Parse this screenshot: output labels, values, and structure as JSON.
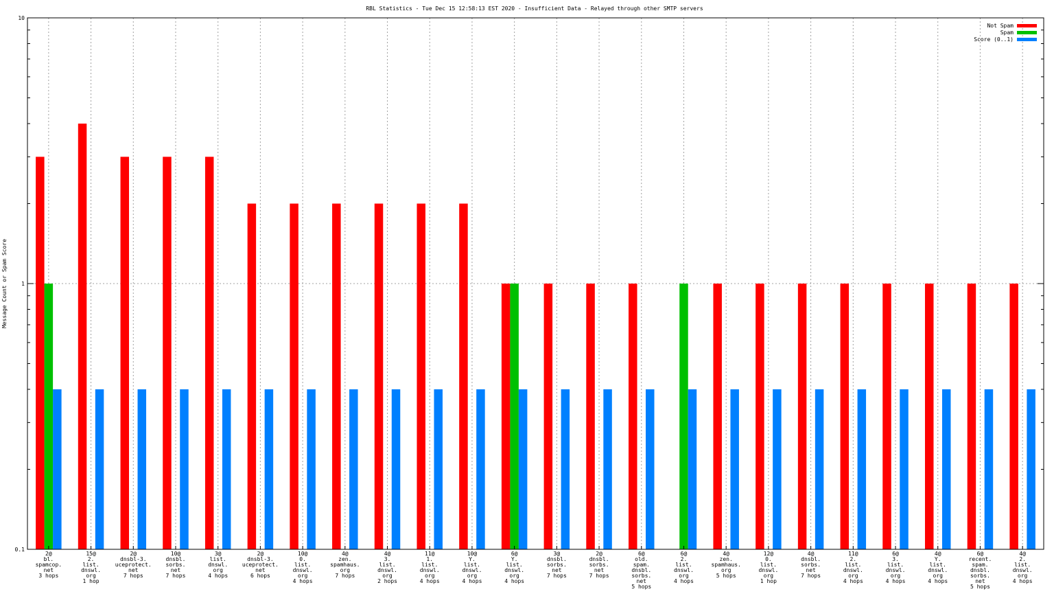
{
  "chart_data": {
    "type": "bar",
    "title": "RBL Statistics - Tue Dec 15 12:58:13 EST 2020 - Insufficient Data - Relayed through other SMTP servers",
    "xlabel": "",
    "ylabel": "Message Count or Spam Score",
    "yscale": "log",
    "ylim": [
      0.1,
      10
    ],
    "yticks": [
      "10",
      "1",
      "0.1"
    ],
    "grid": true,
    "legend_position": "top-right",
    "categories": [
      [
        "2@",
        "bl.",
        "spamcop.",
        "net",
        "3 hops"
      ],
      [
        "15@",
        "2.",
        "list.",
        "dnswl.",
        "org",
        "1 hop"
      ],
      [
        "2@",
        "dnsbl-3.",
        "uceprotect.",
        "net",
        "7 hops"
      ],
      [
        "10@",
        "dnsbl.",
        "sorbs.",
        "net",
        "7 hops"
      ],
      [
        "3@",
        "list.",
        "dnswl.",
        "org",
        "4 hops"
      ],
      [
        "2@",
        "dnsbl-3.",
        "uceprotect.",
        "net",
        "6 hops"
      ],
      [
        "10@",
        "0.",
        "list.",
        "dnswl.",
        "org",
        "4 hops"
      ],
      [
        "4@",
        "zen.",
        "spamhaus.",
        "org",
        "7 hops"
      ],
      [
        "4@",
        "3.",
        "list.",
        "dnswl.",
        "org",
        "2 hops"
      ],
      [
        "11@",
        "1.",
        "list.",
        "dnswl.",
        "org",
        "4 hops"
      ],
      [
        "10@",
        "Y.",
        "list.",
        "dnswl.",
        "org",
        "4 hops"
      ],
      [
        "6@",
        "Y.",
        "list.",
        "dnswl.",
        "org",
        "4 hops"
      ],
      [
        "3@",
        "dnsbl.",
        "sorbs.",
        "net",
        "7 hops"
      ],
      [
        "2@",
        "dnsbl.",
        "sorbs.",
        "net",
        "7 hops"
      ],
      [
        "6@",
        "old.",
        "spam.",
        "dnsbl.",
        "sorbs.",
        "net",
        "5 hops"
      ],
      [
        "6@",
        "2.",
        "list.",
        "dnswl.",
        "org",
        "4 hops"
      ],
      [
        "4@",
        "zen.",
        "spamhaus.",
        "org",
        "5 hops"
      ],
      [
        "12@",
        "0.",
        "list.",
        "dnswl.",
        "org",
        "1 hop"
      ],
      [
        "4@",
        "dnsbl.",
        "sorbs.",
        "net",
        "7 hops"
      ],
      [
        "11@",
        "2.",
        "list.",
        "dnswl.",
        "org",
        "4 hops"
      ],
      [
        "6@",
        "3.",
        "list.",
        "dnswl.",
        "org",
        "4 hops"
      ],
      [
        "4@",
        "Y.",
        "list.",
        "dnswl.",
        "org",
        "4 hops"
      ],
      [
        "6@",
        "recent.",
        "spam.",
        "dnsbl.",
        "sorbs.",
        "net",
        "5 hops"
      ],
      [
        "4@",
        "2.",
        "list.",
        "dnswl.",
        "org",
        "4 hops"
      ]
    ],
    "series": [
      {
        "name": "Not Spam",
        "color": "#ff0000",
        "values": [
          3,
          4,
          3,
          3,
          3,
          2,
          2,
          2,
          2,
          2,
          2,
          1,
          1,
          1,
          1,
          null,
          1,
          1,
          1,
          1,
          1,
          1,
          1,
          1
        ]
      },
      {
        "name": "Spam",
        "color": "#00c000",
        "values": [
          1,
          null,
          null,
          null,
          null,
          null,
          null,
          null,
          null,
          null,
          null,
          1,
          null,
          null,
          null,
          1,
          null,
          null,
          null,
          null,
          null,
          null,
          null,
          null
        ]
      },
      {
        "name": "Score (0..1)",
        "color": "#0080ff",
        "values": [
          0.4,
          0.4,
          0.4,
          0.4,
          0.4,
          0.4,
          0.4,
          0.4,
          0.4,
          0.4,
          0.4,
          0.4,
          0.4,
          0.4,
          0.4,
          0.4,
          0.4,
          0.4,
          0.4,
          0.4,
          0.4,
          0.4,
          0.4,
          0.4
        ]
      }
    ]
  }
}
